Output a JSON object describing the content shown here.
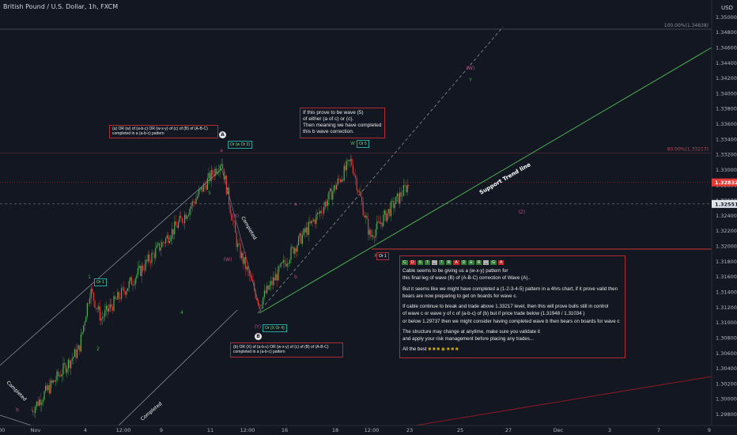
{
  "header": {
    "title": "British Pound / U.S. Dollar, 1h, FXCM",
    "currency": "USD"
  },
  "chart_data": {
    "type": "candlestick",
    "title": "British Pound / U.S. Dollar, 1h, FXCM",
    "ylim": [
      1.2965,
      1.352
    ],
    "y_ticks": [
      "1.35000",
      "1.34800",
      "1.34600",
      "1.34400",
      "1.34200",
      "1.34000",
      "1.33800",
      "1.33600",
      "1.33400",
      "1.33200",
      "1.33000",
      "1.32800",
      "1.32600",
      "1.32400",
      "1.32200",
      "1.32000",
      "1.31800",
      "1.31600",
      "1.31400",
      "1.31200",
      "1.31000",
      "1.30800",
      "1.30600",
      "1.30400",
      "1.30200",
      "1.30000",
      "1.29800"
    ],
    "x_ticks": [
      "00",
      "Nov",
      "4",
      "12:00",
      "9",
      "11",
      "12:00",
      "16",
      "18",
      "12:00",
      "23",
      "25",
      "27",
      "Dec",
      "3",
      "7",
      "9"
    ],
    "price_path": [
      {
        "x": "Nov",
        "y": 1.2985
      },
      {
        "x": "4",
        "y": 1.3065
      },
      {
        "x": "4",
        "y": 1.3143
      },
      {
        "x": "12:00",
        "y": 1.3105
      },
      {
        "x": "9",
        "y": 1.3235
      },
      {
        "x": "11",
        "y": 1.3312
      },
      {
        "x": "12:00",
        "y": 1.3201
      },
      {
        "x": "12:00",
        "y": 1.3125
      },
      {
        "x": "16",
        "y": 1.3198
      },
      {
        "x": "18",
        "y": 1.3245
      },
      {
        "x": "18",
        "y": 1.3312
      },
      {
        "x": "12:00",
        "y": 1.3212
      },
      {
        "x": "23",
        "y": 1.3283
      }
    ],
    "levels": {
      "current_price": "1.32832",
      "trend_line_price": "1.32551",
      "fib_100_label": "100.00%(1.34838)",
      "fib_100_value": 1.34838,
      "fib_80_label": "80.00%(1.33217)",
      "fib_80_value": 1.33217,
      "red_horizontal_value": 1.3196,
      "gray_horizontal_value": 1.32551
    },
    "trend_line_label": "Support Trend line",
    "wave_labels": {
      "1": "1",
      "2": "2",
      "3": "3",
      "4": "4",
      "5": "5",
      "A": "A",
      "B": "B",
      "X": "(X)",
      "W": "(W)",
      "Y": "(Y)",
      "Z": "(Z)",
      "w": "W",
      "y": "Y",
      "a": "a",
      "b": "b",
      "c": "c",
      "x": "X",
      "x2": "x"
    },
    "completed_labels": [
      "Completed",
      "Completed",
      "Completed"
    ]
  },
  "annotations": {
    "box_a": [
      "(a) OR (w) of (a-b-c) OR (w-x-y) of (c) of (B) of (A-B-C)",
      "completed in a (a-b-c) pattern"
    ],
    "box_prove": [
      "If this prove to be wave (5)",
      "of either (a of c) or (c).",
      "Then meaning we have completed",
      "this b wave correction."
    ],
    "box_b": [
      "(b) OR (X)  of (a-b-c) OR (w-x-y)  of (c) of (B) of (A-B-C)",
      "completed in a (a-b-c) pattern"
    ],
    "badge_or1_left": "Or  1",
    "badge_a_or": "Or   (w Or 3)",
    "badge_b_or": "Or  (X Or 4)",
    "badge_w_or": "Or 5",
    "badge_or1_right": "Or  1",
    "circle_a": "A",
    "circle_b": "B"
  },
  "main_note": {
    "title_glyphs": [
      "C",
      "O",
      "S",
      "T",
      "_",
      "T",
      "R",
      "A",
      "D",
      "E",
      "R",
      "_",
      "G",
      "A"
    ],
    "title_colors": [
      "green",
      "red",
      "green",
      "green",
      "dark",
      "green",
      "green",
      "red",
      "green",
      "green",
      "green",
      "dark",
      "green",
      "red"
    ],
    "p1": [
      "Cable seems to be giving us a (w-x-y) pattern for",
      "this final leg of wave (B) of (A-B-C) correction of Wave (A).."
    ],
    "p2": [
      "But it seems like we might have completed a (1-2-3-4-5) pattern in a 4hrs chart, if it prove valid then",
      "bears are now preparing to get on boards for wave c."
    ],
    "p3": [
      "If cable continue to break and trade above 1.33217 level, then this will prove bulls still in control",
      "of wave c or wave y of c of (a-b-c) of (b) but if price trade below (1.31948 / 1.31034 )",
      "or below 1.29737 then we might consider having completed wave b then bears on boards for wave c"
    ],
    "p4": [
      "The structure may change at anytime, make sure you  validate it",
      "and apply your risk management before placing any trades..."
    ],
    "p5": "All the best"
  }
}
